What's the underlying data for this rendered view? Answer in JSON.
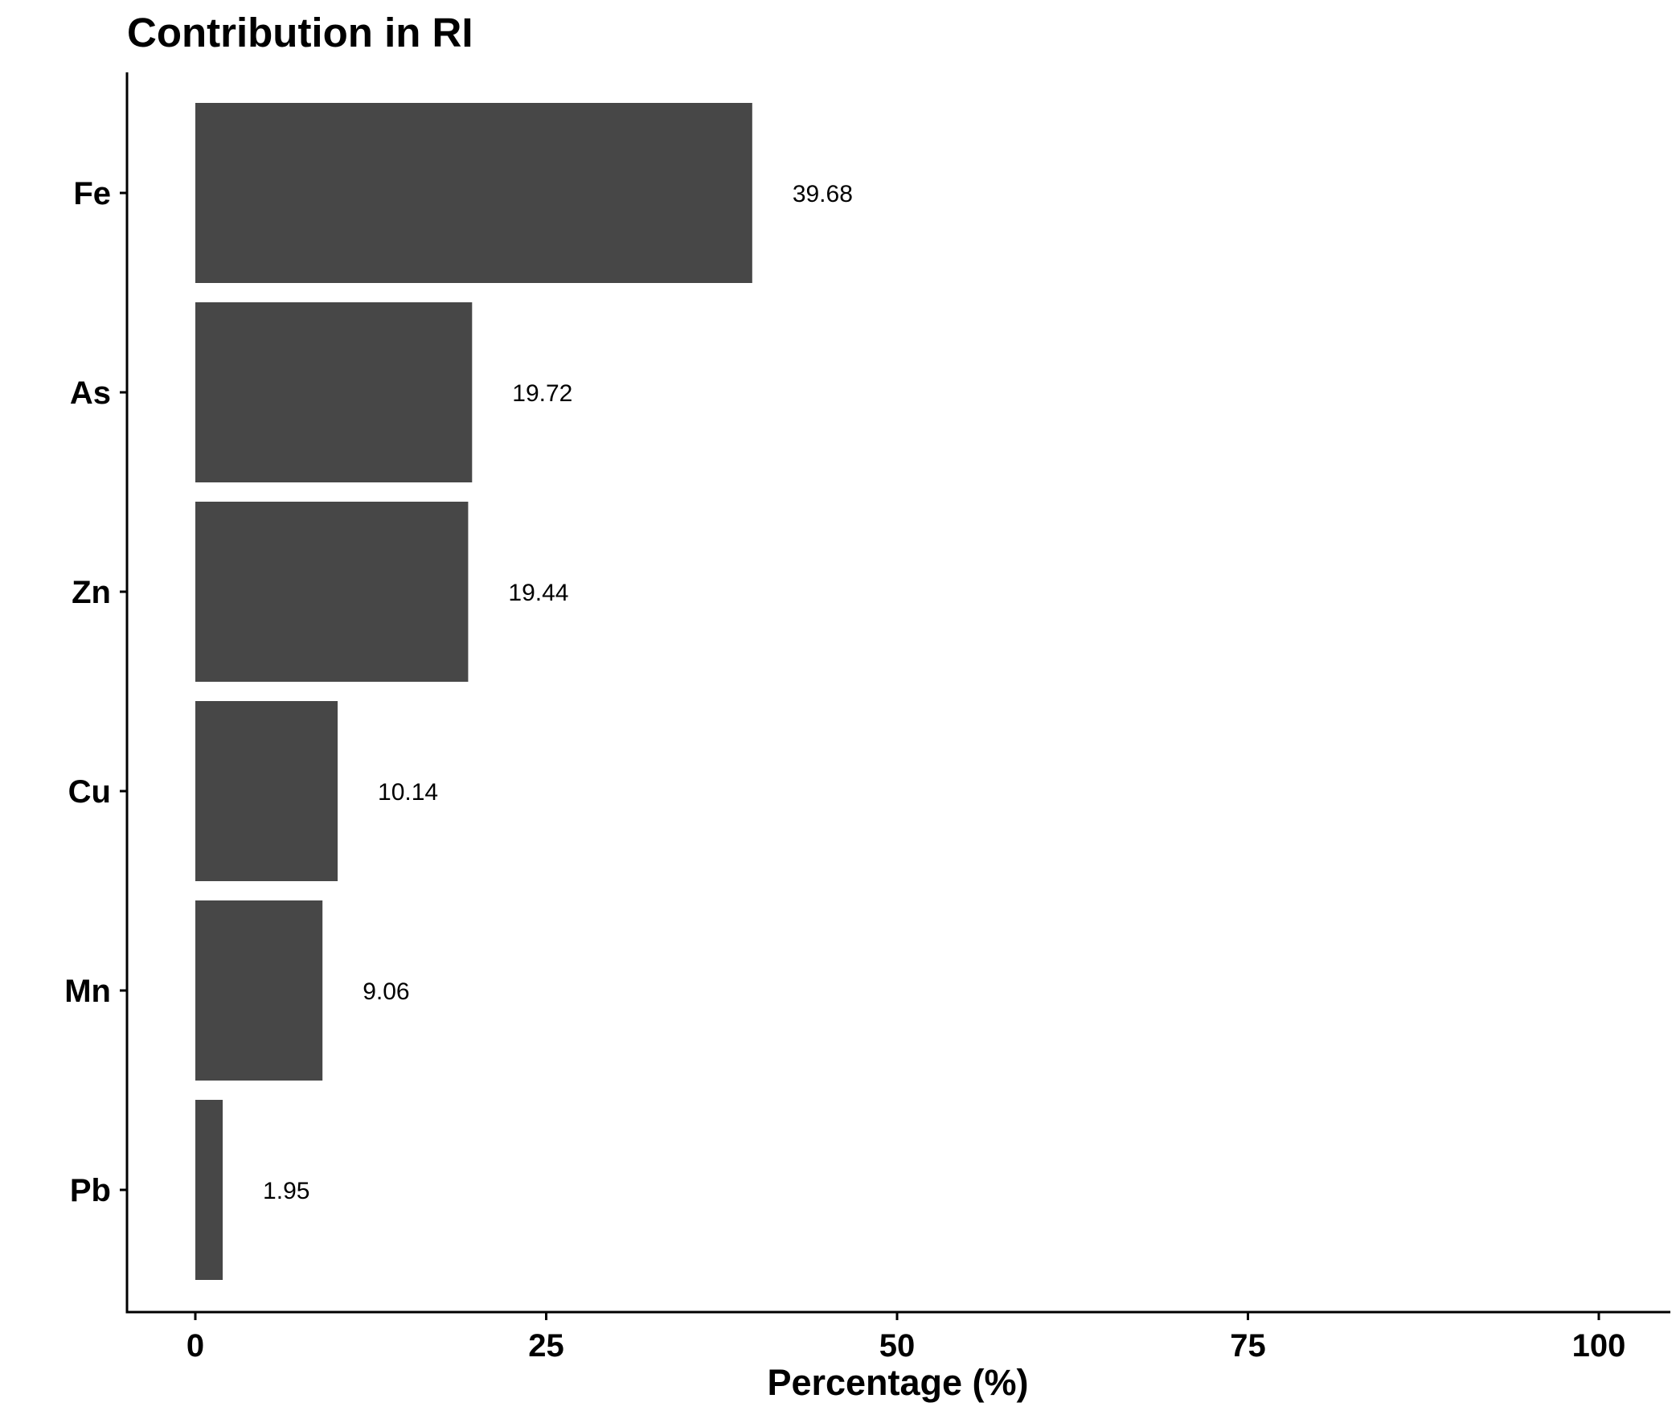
{
  "chart_data": {
    "type": "bar",
    "orientation": "horizontal",
    "title": "Contribution in RI",
    "xlabel": "Percentage (%)",
    "ylabel": "",
    "categories": [
      "Fe",
      "As",
      "Zn",
      "Cu",
      "Mn",
      "Pb"
    ],
    "values": [
      39.68,
      19.72,
      19.44,
      10.14,
      9.06,
      1.95
    ],
    "value_labels": [
      "39.68",
      "19.72",
      "19.44",
      "10.14",
      "9.06",
      "1.95"
    ],
    "xlim": [
      0,
      100
    ],
    "xticks": [
      0,
      25,
      50,
      75,
      100
    ],
    "xtick_labels": [
      "0",
      "25",
      "50",
      "75",
      "100"
    ],
    "grid": false,
    "legend": "none",
    "bar_color": "#474747"
  }
}
